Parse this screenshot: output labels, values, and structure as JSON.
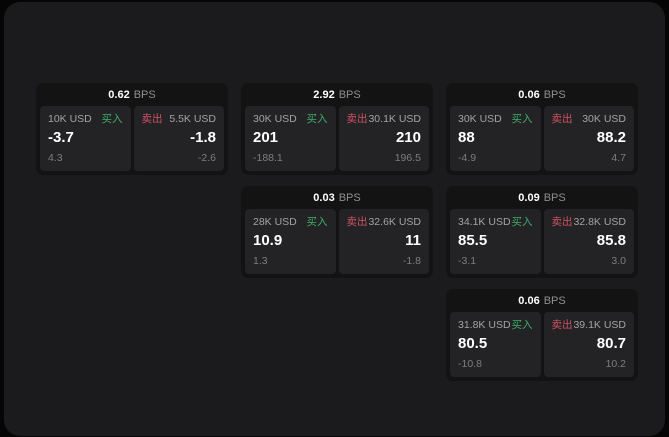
{
  "theme": {
    "outer_bg": "#050505",
    "window_bg": "#1b1b1d",
    "card_bg": "#131314",
    "panel_bg": "#232325",
    "text_primary": "#ffffff",
    "text_secondary": "#a3a3a3",
    "text_muted": "#7d7d7d",
    "buy": "#3fae68",
    "sell": "#cf5264"
  },
  "labels": {
    "bps_unit": "BPS",
    "buy": "买入",
    "sell": "卖出"
  },
  "cards": [
    {
      "bps": "0.62",
      "row": 1,
      "col": 1,
      "buy": {
        "notional": "10K USD",
        "value": "-3.7",
        "delta": "4.3"
      },
      "sell": {
        "notional": "5.5K USD",
        "value": "-1.8",
        "delta": "-2.6"
      }
    },
    {
      "bps": "2.92",
      "row": 1,
      "col": 2,
      "buy": {
        "notional": "30K USD",
        "value": "201",
        "delta": "-188.1"
      },
      "sell": {
        "notional": "30.1K USD",
        "value": "210",
        "delta": "196.5"
      }
    },
    {
      "bps": "0.06",
      "row": 1,
      "col": 3,
      "buy": {
        "notional": "30K USD",
        "value": "88",
        "delta": "-4.9"
      },
      "sell": {
        "notional": "30K USD",
        "value": "88.2",
        "delta": "4.7"
      }
    },
    {
      "bps": "0.03",
      "row": 2,
      "col": 2,
      "buy": {
        "notional": "28K USD",
        "value": "10.9",
        "delta": "1.3"
      },
      "sell": {
        "notional": "32.6K USD",
        "value": "11",
        "delta": "-1.8"
      }
    },
    {
      "bps": "0.09",
      "row": 2,
      "col": 3,
      "buy": {
        "notional": "34.1K USD",
        "value": "85.5",
        "delta": "-3.1"
      },
      "sell": {
        "notional": "32.8K USD",
        "value": "85.8",
        "delta": "3.0"
      }
    },
    {
      "bps": "0.06",
      "row": 3,
      "col": 3,
      "buy": {
        "notional": "31.8K USD",
        "value": "80.5",
        "delta": "-10.8"
      },
      "sell": {
        "notional": "39.1K USD",
        "value": "80.7",
        "delta": "10.2"
      }
    }
  ]
}
